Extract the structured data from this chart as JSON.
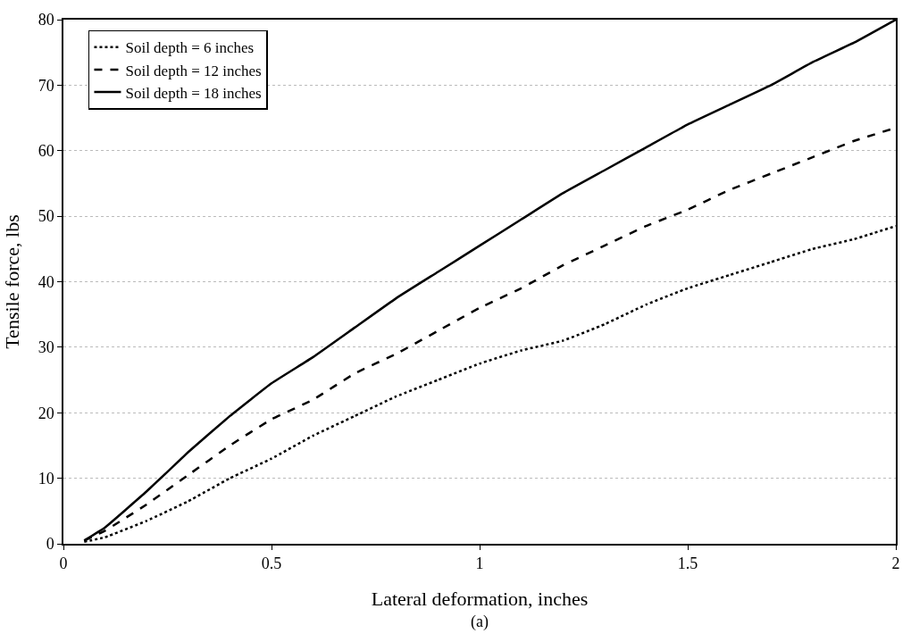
{
  "chart_data": {
    "type": "line",
    "xlabel": "Lateral deformation, inches",
    "ylabel": "Tensile force, lbs",
    "annotations": [
      "(a)"
    ],
    "x": [
      0.05,
      0.1,
      0.2,
      0.3,
      0.4,
      0.5,
      0.6,
      0.7,
      0.8,
      0.9,
      1.0,
      1.1,
      1.2,
      1.3,
      1.4,
      1.5,
      1.6,
      1.7,
      1.8,
      1.9,
      2.0
    ],
    "series": [
      {
        "name": "Soil depth = 6 inches",
        "color": "#000000",
        "line_style": "dotted",
        "values": [
          0.3,
          1,
          3.5,
          6.5,
          10,
          13,
          16.5,
          19.5,
          22.5,
          25,
          27.5,
          29.5,
          31,
          33.5,
          36.5,
          39,
          41,
          43,
          45,
          46.5,
          48.5
        ]
      },
      {
        "name": "Soil depth = 12 inches",
        "color": "#000000",
        "line_style": "dashed",
        "values": [
          0.5,
          2,
          6,
          10.5,
          15,
          19,
          22,
          26,
          29,
          32.5,
          36,
          39,
          42.5,
          45.5,
          48.5,
          51,
          54,
          56.5,
          59,
          61.5,
          63.5
        ]
      },
      {
        "name": "Soil depth = 18 inches",
        "color": "#000000",
        "line_style": "solid",
        "values": [
          0.5,
          2.5,
          8,
          14,
          19.5,
          24.5,
          28.5,
          33,
          37.5,
          41.5,
          45.5,
          49.5,
          53.5,
          57,
          60.5,
          64,
          67,
          70,
          73.5,
          76.5,
          80
        ]
      }
    ],
    "xlim": [
      0,
      2
    ],
    "xticks": [
      0,
      0.5,
      1,
      1.5,
      2
    ],
    "ylim": [
      0,
      80
    ],
    "yticks": [
      0,
      10,
      20,
      30,
      40,
      50,
      60,
      70,
      80
    ],
    "grid": "y",
    "legend": "top left",
    "marker": "none"
  }
}
